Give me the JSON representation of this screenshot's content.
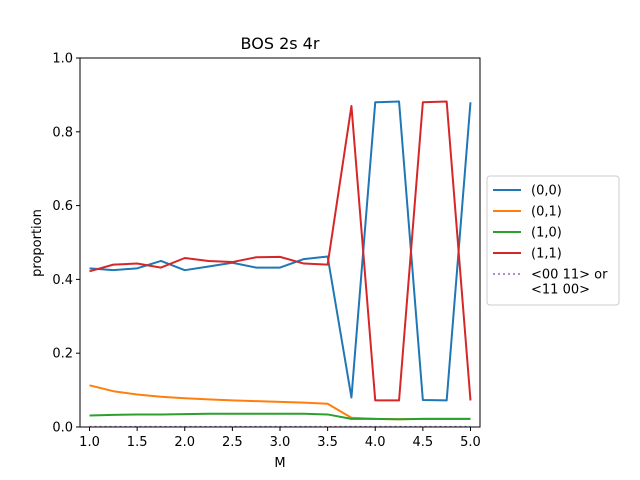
{
  "chart_data": {
    "type": "line",
    "title": "BOS 2s 4r",
    "xlabel": "M",
    "ylabel": "proportion",
    "xlim": [
      0.9,
      5.1
    ],
    "ylim": [
      0.0,
      1.0
    ],
    "xticks": [
      "1.0",
      "1.5",
      "2.0",
      "2.5",
      "3.0",
      "3.5",
      "4.0",
      "4.5",
      "5.0"
    ],
    "yticks": [
      "0.0",
      "0.2",
      "0.4",
      "0.6",
      "0.8",
      "1.0"
    ],
    "grid": false,
    "legend_position": "center-right outside",
    "x": [
      1.0,
      1.25,
      1.5,
      1.75,
      2.0,
      2.25,
      2.5,
      2.75,
      3.0,
      3.25,
      3.5,
      3.75,
      4.0,
      4.25,
      4.5,
      4.75,
      5.0
    ],
    "series": [
      {
        "name": "(0,0)",
        "color": "#1f77b4",
        "style": "solid",
        "values": [
          0.43,
          0.425,
          0.43,
          0.45,
          0.425,
          0.435,
          0.445,
          0.432,
          0.432,
          0.455,
          0.462,
          0.08,
          0.88,
          0.882,
          0.073,
          0.072,
          0.88
        ]
      },
      {
        "name": "(0,1)",
        "color": "#ff7f0e",
        "style": "solid",
        "values": [
          0.113,
          0.097,
          0.088,
          0.082,
          0.078,
          0.075,
          0.072,
          0.07,
          0.068,
          0.066,
          0.063,
          0.025,
          0.022,
          0.021,
          0.022,
          0.022,
          0.022
        ]
      },
      {
        "name": "(1,0)",
        "color": "#2ca02c",
        "style": "solid",
        "values": [
          0.031,
          0.033,
          0.034,
          0.034,
          0.035,
          0.036,
          0.036,
          0.036,
          0.036,
          0.036,
          0.034,
          0.022,
          0.022,
          0.021,
          0.022,
          0.022,
          0.022
        ]
      },
      {
        "name": "(1,1)",
        "color": "#d62728",
        "style": "solid",
        "values": [
          0.422,
          0.44,
          0.443,
          0.432,
          0.458,
          0.45,
          0.447,
          0.46,
          0.461,
          0.443,
          0.44,
          0.87,
          0.072,
          0.072,
          0.88,
          0.882,
          0.072
        ]
      },
      {
        "name": "<00 11> or\n<11 00>",
        "color": "#9467bd",
        "style": "dotted",
        "values": [
          0.001,
          0.001,
          0.001,
          0.001,
          0.001,
          0.001,
          0.001,
          0.001,
          0.001,
          0.001,
          0.001,
          0.001,
          0.001,
          0.001,
          0.001,
          0.001,
          0.001
        ]
      }
    ]
  }
}
